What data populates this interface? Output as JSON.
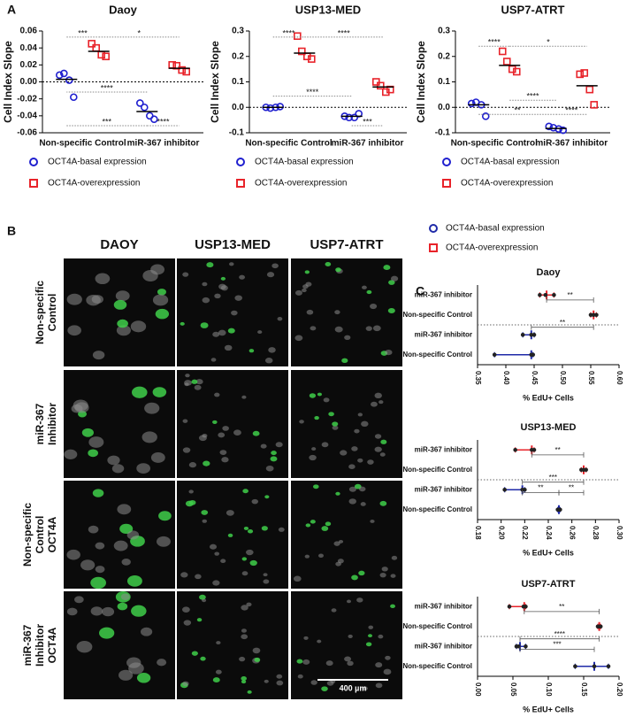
{
  "panel_labels": [
    "A",
    "B",
    "C"
  ],
  "chart_data": [
    {
      "type": "dot",
      "title": "Daoy",
      "y_label": "Cell Index Slope",
      "categories": [
        "Non-specific Control",
        "miR-367 inhibitor"
      ],
      "ylim": [
        -0.06,
        0.06
      ],
      "yticks": [
        -0.06,
        -0.04,
        -0.02,
        {
          "value": 0,
          "label": "0.00"
        },
        0.02,
        0.04,
        0.06
      ],
      "series": [
        {
          "name": "OCT4A-basal expression",
          "color": "#1f1fcf",
          "values": [
            [
              0.008,
              0.01,
              0.002,
              -0.018
            ],
            [
              -0.025,
              -0.03,
              -0.04,
              -0.044
            ]
          ],
          "means": [
            0.003,
            -0.035
          ]
        },
        {
          "name": "OCT4A-overexpression",
          "color": "#e8232a",
          "values": [
            [
              0.045,
              0.04,
              0.032,
              0.03
            ],
            [
              0.02,
              0.019,
              0.014,
              0.012
            ]
          ],
          "means": [
            0.036,
            0.016
          ]
        }
      ],
      "annotations": [
        "***",
        "*",
        "****",
        "***",
        "****"
      ]
    },
    {
      "type": "dot",
      "title": "USP13-MED",
      "y_label": "Cell Index Slope",
      "categories": [
        "Non-specific Control",
        "miR-367 inhibitor"
      ],
      "ylim": [
        -0.1,
        0.3
      ],
      "yticks": [
        -0.1,
        {
          "value": 0,
          "label": "0.0"
        },
        0.1,
        0.2,
        0.3
      ],
      "series": [
        {
          "name": "OCT4A-basal expression",
          "color": "#1f1fcf",
          "values": [
            [
              0.0,
              -0.003,
              0.0,
              0.003
            ],
            [
              -0.035,
              -0.04,
              -0.04,
              -0.025
            ]
          ],
          "means": [
            0.0,
            -0.035
          ]
        },
        {
          "name": "OCT4A-overexpression",
          "color": "#e8232a",
          "values": [
            [
              0.28,
              0.22,
              0.2,
              0.19
            ],
            [
              0.1,
              0.085,
              0.06,
              0.07
            ]
          ],
          "means": [
            0.213,
            0.08
          ]
        }
      ],
      "annotations": [
        "****",
        "****",
        "****",
        "***"
      ]
    },
    {
      "type": "dot",
      "title": "USP7-ATRT",
      "y_label": "Cell Index Slope",
      "categories": [
        "Non-specific Control",
        "miR-367 inhibitor"
      ],
      "ylim": [
        -0.1,
        0.3
      ],
      "yticks": [
        -0.1,
        {
          "value": 0,
          "label": "0.0"
        },
        0.1,
        0.2,
        0.3
      ],
      "series": [
        {
          "name": "OCT4A-basal expression",
          "color": "#1f1fcf",
          "values": [
            [
              0.015,
              0.02,
              0.01,
              -0.035
            ],
            [
              -0.075,
              -0.08,
              -0.085,
              -0.09
            ]
          ],
          "means": [
            0.01,
            -0.083
          ]
        },
        {
          "name": "OCT4A-overexpression",
          "color": "#e8232a",
          "values": [
            [
              0.22,
              0.18,
              0.15,
              0.14
            ],
            [
              0.13,
              0.135,
              0.07,
              0.01
            ]
          ],
          "means": [
            0.165,
            0.085
          ]
        }
      ],
      "annotations": [
        "****",
        "*",
        "****",
        "**",
        "****"
      ]
    },
    {
      "type": "hdot",
      "title": "Daoy",
      "x_label": "% EdU+ Cells",
      "categories": [
        "miR-367 inhibitor",
        "Non-specific Control",
        "miR-367 inhibitor",
        "Non-specific Control"
      ],
      "xlim": [
        0.35,
        0.6
      ],
      "xticks": [
        0.35,
        {
          "value": 0.4,
          "label": "0.40"
        },
        0.45,
        {
          "value": 0.5,
          "label": "0.50"
        },
        0.55,
        {
          "value": 0.6,
          "label": "0.60"
        }
      ],
      "series": [
        {
          "name": "OCT4A-overexpression",
          "color": "#e8232a",
          "values": [
            [
              0.46,
              0.47,
              0.485
            ],
            [
              0.55,
              0.555,
              0.56
            ],
            null,
            null
          ],
          "means": [
            0.472,
            0.555,
            null,
            null
          ]
        },
        {
          "name": "OCT4A-basal expression",
          "color": "#1f2aa8",
          "values": [
            null,
            null,
            [
              0.43,
              0.445,
              0.45
            ],
            [
              0.38,
              0.445,
              0.448
            ]
          ],
          "means": [
            null,
            null,
            0.445,
            0.445
          ]
        }
      ],
      "annotations": [
        "**",
        "**"
      ]
    },
    {
      "type": "hdot",
      "title": "USP13-MED",
      "x_label": "% EdU+ Cells",
      "categories": [
        "miR-367 inhibitor",
        "Non-specific Control",
        "miR-367 inhibitor",
        "Non-specific Control"
      ],
      "xlim": [
        0.18,
        0.3
      ],
      "xticks": [
        0.18,
        {
          "value": 0.2,
          "label": "0.20"
        },
        0.22,
        0.24,
        0.26,
        0.28,
        {
          "value": 0.3,
          "label": "0.30"
        }
      ],
      "series": [
        {
          "color": "#e8232a",
          "values": [
            [
              0.212,
              0.226,
              0.228
            ],
            [
              0.268,
              0.27,
              0.272
            ],
            null,
            null
          ],
          "means": [
            0.226,
            0.27,
            null,
            null
          ]
        },
        {
          "color": "#1f2aa8",
          "values": [
            null,
            null,
            [
              0.203,
              0.218,
              0.22
            ],
            [
              0.248,
              0.249,
              0.25
            ]
          ],
          "means": [
            null,
            null,
            0.218,
            0.249
          ]
        }
      ],
      "annotations": [
        "**",
        "***",
        "**",
        "**"
      ]
    },
    {
      "type": "hdot",
      "title": "USP7-ATRT",
      "x_label": "% EdU+ Cells",
      "categories": [
        "miR-367 inhibitor",
        "Non-specific Control",
        "miR-367 inhibitor",
        "Non-specific Control"
      ],
      "xlim": [
        0,
        0.2
      ],
      "xticks": [
        {
          "value": 0,
          "label": "0.00"
        },
        0.05,
        {
          "value": 0.1,
          "label": "0.10"
        },
        0.15,
        {
          "value": 0.2,
          "label": "0.20"
        }
      ],
      "series": [
        {
          "color": "#e8232a",
          "values": [
            [
              0.045,
              0.065,
              0.068
            ],
            [
              0.17,
              0.172,
              0.174
            ],
            null,
            null
          ],
          "means": [
            0.066,
            0.172,
            null,
            null
          ]
        },
        {
          "color": "#1f2aa8",
          "values": [
            null,
            null,
            [
              0.055,
              0.058,
              0.068
            ],
            [
              0.138,
              0.165,
              0.185
            ]
          ],
          "means": [
            null,
            null,
            0.06,
            0.165
          ]
        }
      ],
      "annotations": [
        "**",
        "****",
        "***"
      ]
    }
  ],
  "microscopy": {
    "columns": [
      "DAOY",
      "USP13-MED",
      "USP7-ATRT"
    ],
    "rows": [
      [
        "Non-specific",
        "Control"
      ],
      [
        "miR-367",
        "Inhibitor"
      ],
      [
        "Non-specific",
        "Control",
        "OCT4A"
      ],
      [
        "miR-367",
        "Inhibitor",
        "OCT4A"
      ]
    ],
    "scale_bar": "400 µm"
  }
}
